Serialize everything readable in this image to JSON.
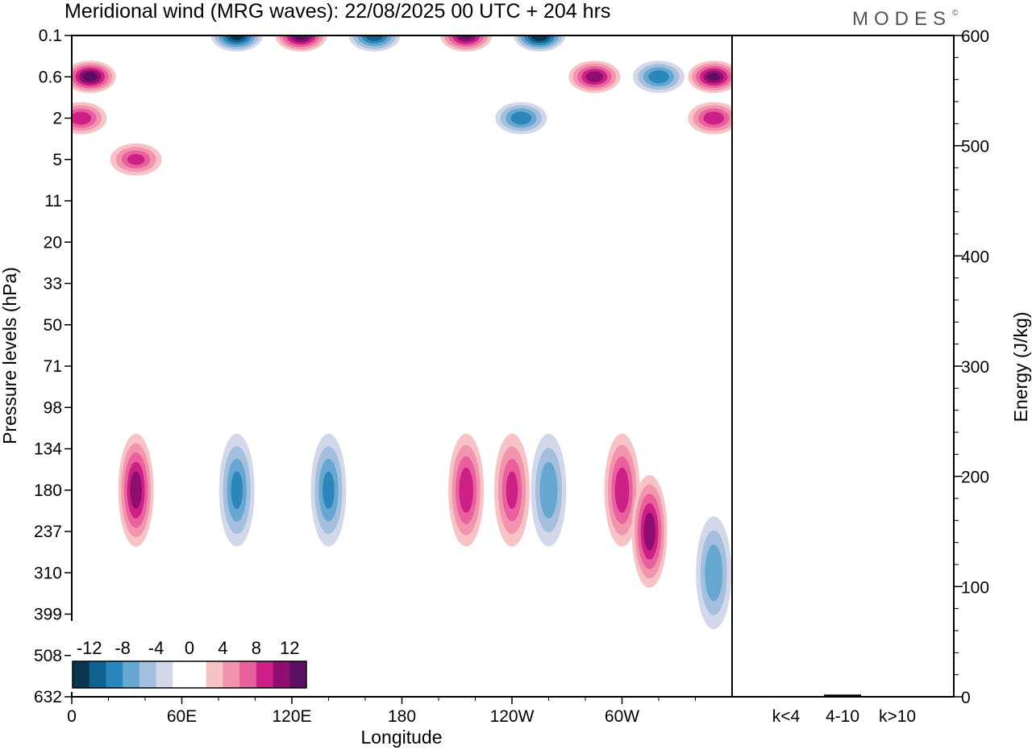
{
  "title": "Meridional wind (MRG waves):  22/08/2025  00 UTC  + 204 hrs",
  "logo": "MODES",
  "logo_mark": "©",
  "chart_data": [
    {
      "type": "heatmap",
      "title": "Meridional wind (MRG waves)",
      "xlabel": "Longitude",
      "ylabel": "Pressure levels (hPa)",
      "x_ticks": [
        "0",
        "60E",
        "120E",
        "180",
        "120W",
        "60W"
      ],
      "x_tick_values": [
        0,
        60,
        120,
        180,
        240,
        300
      ],
      "xlim": [
        0,
        360
      ],
      "y_ticks": [
        "0.1",
        "0.6",
        "2",
        "5",
        "11",
        "20",
        "33",
        "50",
        "71",
        "98",
        "134",
        "180",
        "237",
        "310",
        "399",
        "508",
        "632"
      ],
      "colorbar": {
        "labels": [
          "-12",
          "-8",
          "-4",
          "0",
          "4",
          "8",
          "12"
        ],
        "levels": [
          -14,
          -12,
          -10,
          -8,
          -6,
          -4,
          -2,
          0,
          2,
          4,
          6,
          8,
          10,
          12,
          14
        ],
        "colors": [
          "#0b3650",
          "#11628f",
          "#2b86bb",
          "#65a7cf",
          "#a3bfdd",
          "#d3d7ea",
          "#ffffff",
          "#ffffff",
          "#f8c3c4",
          "#f194ae",
          "#e8609c",
          "#cc2087",
          "#8f0e6f",
          "#5a0f62"
        ]
      },
      "features": [
        {
          "lon": 10,
          "level": "0.6",
          "value": 13
        },
        {
          "lon": 5,
          "level": "2",
          "value": 9
        },
        {
          "lon": 35,
          "level": "5",
          "value": 8
        },
        {
          "lon": 90,
          "level": "0.1",
          "value": -13
        },
        {
          "lon": 125,
          "level": "0.1",
          "value": 13
        },
        {
          "lon": 165,
          "level": "0.1",
          "value": -11
        },
        {
          "lon": 215,
          "level": "0.1",
          "value": 12
        },
        {
          "lon": 255,
          "level": "0.1",
          "value": -14
        },
        {
          "lon": 285,
          "level": "0.6",
          "value": 11
        },
        {
          "lon": 320,
          "level": "0.6",
          "value": -9
        },
        {
          "lon": 350,
          "level": "0.6",
          "value": 12
        },
        {
          "lon": 245,
          "level": "2",
          "value": -9
        },
        {
          "lon": 350,
          "level": "2",
          "value": 9
        },
        {
          "lon": 35,
          "level": "180",
          "value": 11
        },
        {
          "lon": 90,
          "level": "180",
          "value": -8
        },
        {
          "lon": 140,
          "level": "180",
          "value": -8
        },
        {
          "lon": 215,
          "level": "180",
          "value": 9
        },
        {
          "lon": 240,
          "level": "180",
          "value": 8
        },
        {
          "lon": 260,
          "level": "180",
          "value": -7
        },
        {
          "lon": 300,
          "level": "180",
          "value": 9
        },
        {
          "lon": 315,
          "level": "237",
          "value": 11
        },
        {
          "lon": 350,
          "level": "310",
          "value": -7
        }
      ]
    },
    {
      "type": "bar",
      "ylabel": "Energy (J/kg)",
      "categories": [
        "k<4",
        "4-10",
        "k>10"
      ],
      "values": [
        0,
        2,
        0
      ],
      "ylim": [
        0,
        600
      ],
      "y_ticks": [
        "0",
        "100",
        "200",
        "300",
        "400",
        "500",
        "600"
      ]
    }
  ]
}
